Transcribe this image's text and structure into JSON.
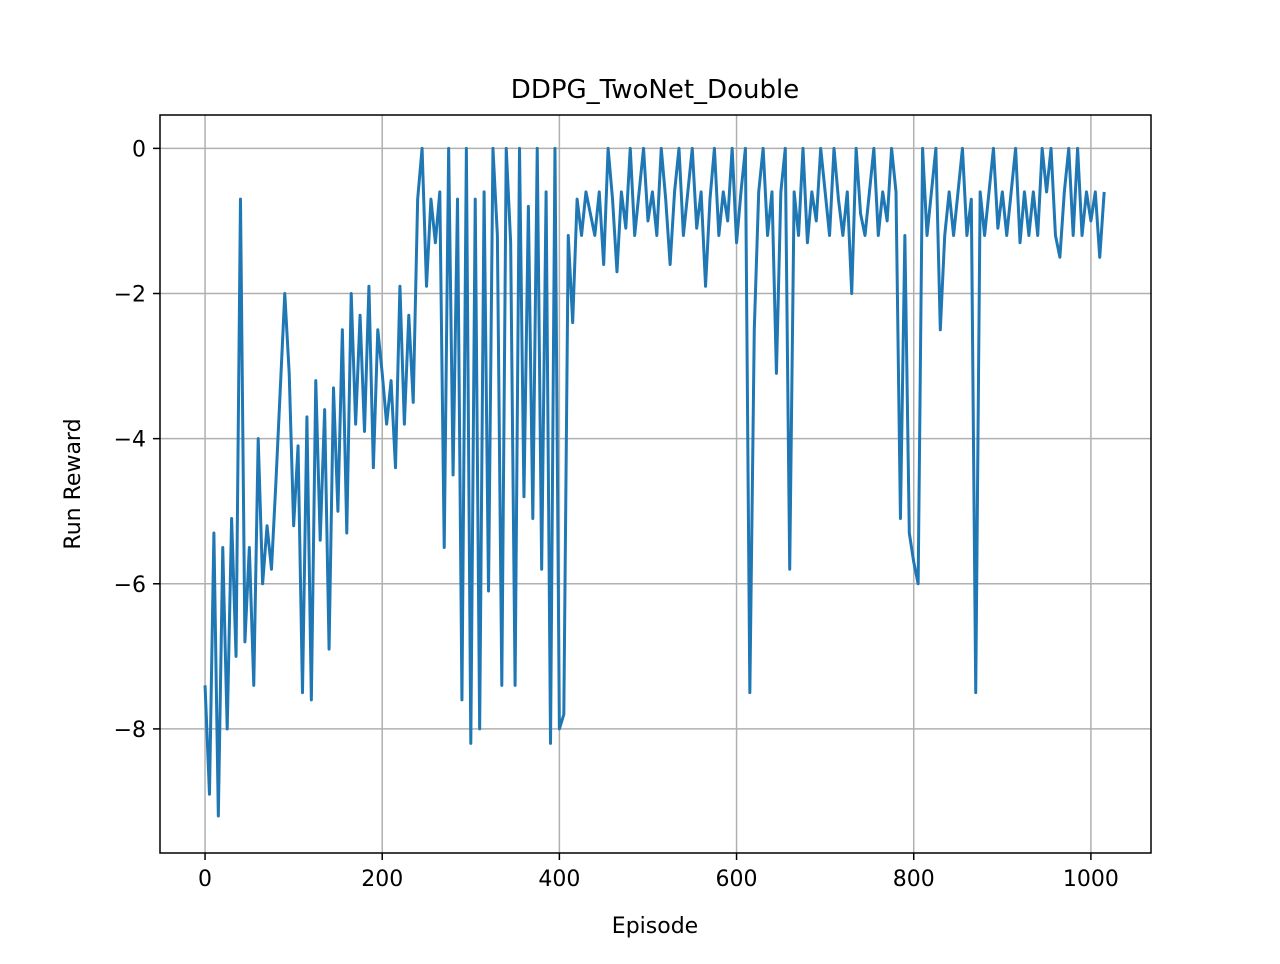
{
  "chart_data": {
    "type": "line",
    "title": "DDPG_TwoNet_Double",
    "x_label": "Episode",
    "y_label": "Run Reward",
    "x": [
      0,
      5,
      10,
      15,
      20,
      25,
      30,
      35,
      40,
      45,
      50,
      55,
      60,
      65,
      70,
      75,
      80,
      85,
      90,
      95,
      100,
      105,
      110,
      115,
      120,
      125,
      130,
      135,
      140,
      145,
      150,
      155,
      160,
      165,
      170,
      175,
      180,
      185,
      190,
      195,
      200,
      205,
      210,
      215,
      220,
      225,
      230,
      235,
      240,
      245,
      250,
      255,
      260,
      265,
      270,
      275,
      280,
      285,
      290,
      295,
      300,
      305,
      310,
      315,
      320,
      325,
      330,
      335,
      340,
      345,
      350,
      355,
      360,
      365,
      370,
      375,
      380,
      385,
      390,
      395,
      400,
      405,
      410,
      415,
      420,
      425,
      430,
      435,
      440,
      445,
      450,
      455,
      460,
      465,
      470,
      475,
      480,
      485,
      490,
      495,
      500,
      505,
      510,
      515,
      520,
      525,
      530,
      535,
      540,
      545,
      550,
      555,
      560,
      565,
      570,
      575,
      580,
      585,
      590,
      595,
      600,
      605,
      610,
      615,
      620,
      625,
      630,
      635,
      640,
      645,
      650,
      655,
      660,
      665,
      670,
      675,
      680,
      685,
      690,
      695,
      700,
      705,
      710,
      715,
      720,
      725,
      730,
      735,
      740,
      745,
      750,
      755,
      760,
      765,
      770,
      775,
      780,
      785,
      790,
      795,
      800,
      805,
      810,
      815,
      820,
      825,
      830,
      835,
      840,
      845,
      850,
      855,
      860,
      865,
      870,
      875,
      880,
      885,
      890,
      895,
      900,
      905,
      910,
      915,
      920,
      925,
      930,
      935,
      940,
      945,
      950,
      955,
      960,
      965,
      970,
      975,
      980,
      985,
      990,
      995,
      1000,
      1005,
      1010,
      1015
    ],
    "series": [
      {
        "name": "Run Reward",
        "color": "#1f77b4",
        "values": [
          -7.4,
          -8.9,
          -5.3,
          -9.2,
          -5.5,
          -8.0,
          -5.1,
          -7.0,
          -0.7,
          -6.8,
          -5.5,
          -7.4,
          -4.0,
          -6.0,
          -5.2,
          -5.8,
          -4.6,
          -3.3,
          -2.0,
          -3.1,
          -5.2,
          -4.1,
          -7.5,
          -3.7,
          -7.6,
          -3.2,
          -5.4,
          -3.6,
          -6.9,
          -3.3,
          -5.0,
          -2.5,
          -5.3,
          -2.0,
          -3.8,
          -2.3,
          -3.9,
          -1.9,
          -4.4,
          -2.5,
          -3.1,
          -3.8,
          -3.2,
          -4.4,
          -1.9,
          -3.8,
          -2.3,
          -3.5,
          -0.7,
          0,
          -1.9,
          -0.7,
          -1.3,
          -0.6,
          -5.5,
          0,
          -4.5,
          -0.7,
          -7.6,
          0,
          -8.2,
          -0.7,
          -8.0,
          -0.6,
          -6.1,
          0,
          -1.2,
          -7.4,
          0,
          -1.3,
          -7.4,
          0,
          -4.8,
          -0.8,
          -5.1,
          0,
          -5.8,
          -0.6,
          -8.2,
          0,
          -8.0,
          -7.8,
          -1.2,
          -2.4,
          -0.7,
          -1.2,
          -0.6,
          -0.9,
          -1.2,
          -0.6,
          -1.6,
          0,
          -0.7,
          -1.7,
          -0.6,
          -1.1,
          0,
          -1.2,
          -0.6,
          0,
          -1.0,
          -0.6,
          -1.2,
          0,
          -0.7,
          -1.6,
          -0.6,
          0,
          -1.2,
          -0.6,
          0,
          -1.1,
          -0.6,
          -1.9,
          -0.7,
          0,
          -1.2,
          -0.6,
          -1.0,
          0,
          -1.3,
          -0.6,
          0,
          -7.5,
          -2.5,
          -0.6,
          0,
          -1.2,
          -0.6,
          -3.1,
          -0.6,
          0,
          -5.8,
          -0.6,
          -1.2,
          0,
          -1.3,
          -0.6,
          -1.0,
          0,
          -0.6,
          -1.2,
          0,
          -0.7,
          -1.2,
          -0.6,
          -2.0,
          0,
          -0.9,
          -1.2,
          -0.6,
          0,
          -1.2,
          -0.6,
          -1.0,
          0,
          -0.6,
          -5.1,
          -1.2,
          -5.3,
          -5.7,
          -6.0,
          0,
          -1.2,
          -0.6,
          0,
          -2.5,
          -1.2,
          -0.6,
          -1.2,
          -0.6,
          0,
          -1.2,
          -0.7,
          -7.5,
          -0.6,
          -1.2,
          -0.6,
          0,
          -1.1,
          -0.6,
          -1.2,
          -0.6,
          0,
          -1.3,
          -0.6,
          -1.2,
          -0.6,
          -1.2,
          0,
          -0.6,
          0,
          -1.2,
          -1.5,
          -0.6,
          0,
          -1.2,
          0,
          -1.2,
          -0.6,
          -1.0,
          -0.6,
          -1.5,
          -0.6
        ]
      }
    ],
    "xlim": [
      -50.85,
      1067.85
    ],
    "ylim": [
      -9.71,
      0.46
    ],
    "xticks": [
      0,
      200,
      400,
      600,
      800,
      1000
    ],
    "yticks": [
      {
        "value": 0,
        "label": "0"
      },
      {
        "value": -2,
        "label": "−2"
      },
      {
        "value": -4,
        "label": "−4"
      },
      {
        "value": -6,
        "label": "−6"
      },
      {
        "value": -8,
        "label": "−8"
      }
    ],
    "grid": true
  }
}
